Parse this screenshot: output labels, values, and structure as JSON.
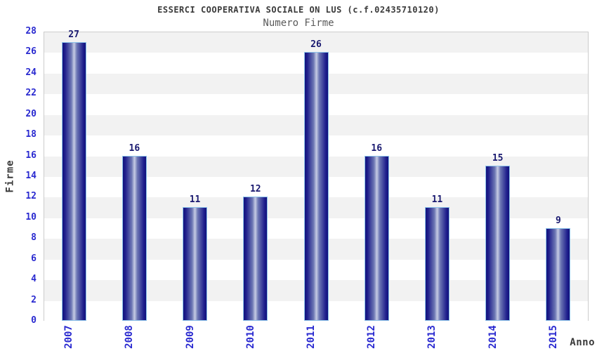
{
  "header": {
    "title": "ESSERCI COOPERATIVA SOCIALE ON LUS (c.f.02435710120)",
    "subtitle": "Numero Firme"
  },
  "chart_data": {
    "type": "bar",
    "title": "ESSERCI COOPERATIVA SOCIALE ON LUS (c.f.02435710120)",
    "subtitle": "Numero Firme",
    "categories": [
      "2007",
      "2008",
      "2009",
      "2010",
      "2011",
      "2012",
      "2013",
      "2014",
      "2015"
    ],
    "values": [
      27,
      16,
      11,
      12,
      26,
      16,
      11,
      15,
      9
    ],
    "xlabel": "Anno",
    "ylabel": "Firme",
    "ylim": [
      0,
      28
    ],
    "ytick_step": 2,
    "ytick_labels": [
      "0",
      "2",
      "4",
      "6",
      "8",
      "10",
      "12",
      "14",
      "16",
      "18",
      "20",
      "22",
      "24",
      "26",
      "28"
    ],
    "grid": "horizontal gridlines every 2 units, alternating shaded bands",
    "legend": "none",
    "colors": {
      "bar_dark": "#12127c",
      "bar_mid": "#6d77b4",
      "bar_light": "#c6cce4",
      "bar_border": "#8cc2ea",
      "axis_tick_label": "#2a2ad0",
      "value_label": "#191970",
      "band_shaded": "#f2f2f2",
      "band_plain": "#ffffff",
      "gridline": "#e2e2e2",
      "plot_border": "#cccccc",
      "title_text": "#3a3a3a",
      "subtitle_text": "#5a5a5a",
      "background": "#ffffff"
    }
  }
}
